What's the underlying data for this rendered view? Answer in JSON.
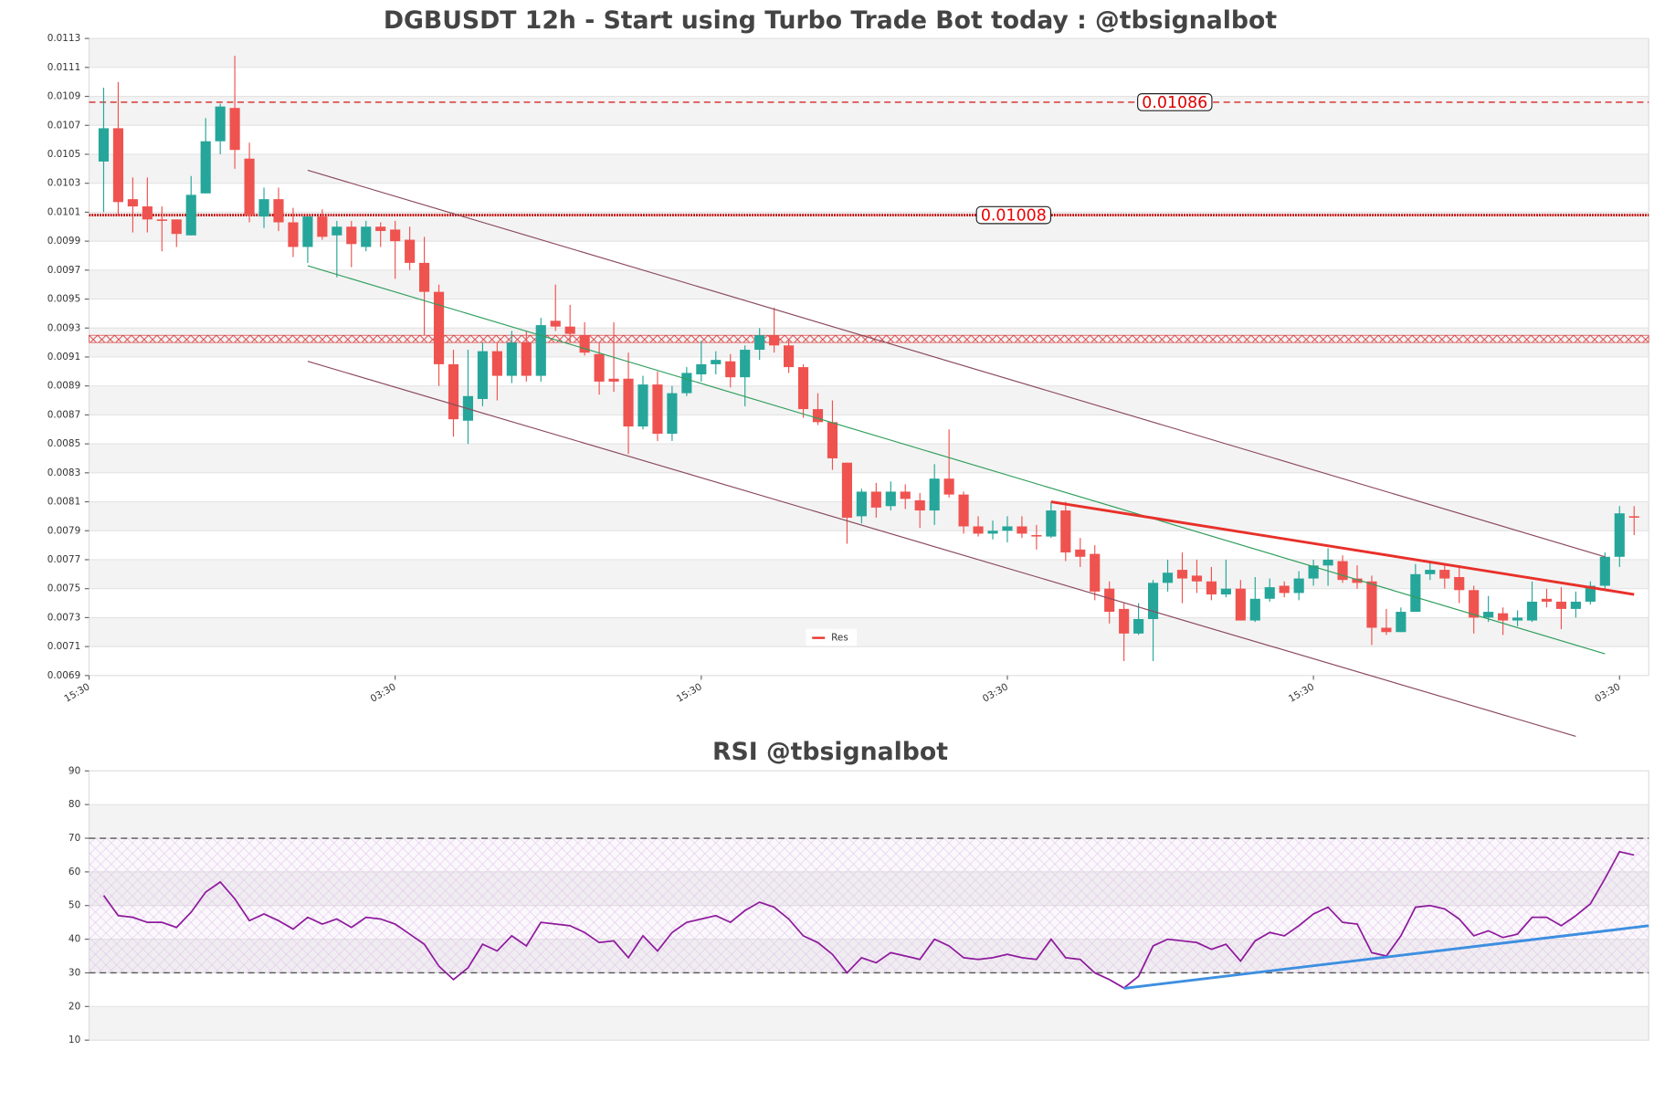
{
  "chart_data": [
    {
      "type": "candlestick",
      "title": "DGBUSDT 12h - Start using Turbo Trade Bot today : @tbsignalbot",
      "xlim": [
        -1,
        106
      ],
      "xticks": [
        {
          "value": -1,
          "label": "15:30"
        },
        {
          "value": 20,
          "label": "03:30"
        },
        {
          "value": 41,
          "label": "15:30"
        },
        {
          "value": 62,
          "label": "03:30"
        },
        {
          "value": 83,
          "label": "15:30"
        },
        {
          "value": 104,
          "label": "03:30"
        }
      ],
      "ylim": [
        0.0069,
        0.0113
      ],
      "yticks": [
        0.0069,
        0.0071,
        0.0073,
        0.0075,
        0.0077,
        0.0079,
        0.0081,
        0.0083,
        0.0085,
        0.0087,
        0.0089,
        0.0091,
        0.0093,
        0.0095,
        0.0097,
        0.0099,
        0.0101,
        0.0103,
        0.0105,
        0.0107,
        0.0109,
        0.0111,
        0.0113
      ],
      "grid": true,
      "up_color": "#26a69a",
      "down_color": "#ef5350",
      "open": [
        0.01045,
        0.01068,
        0.01019,
        0.01014,
        0.01005,
        0.01005,
        0.00994,
        0.01023,
        0.01059,
        0.01082,
        0.01047,
        0.01007,
        0.01019,
        0.01003,
        0.00986,
        0.01007,
        0.00994,
        0.01,
        0.00986,
        0.01,
        0.00998,
        0.00991,
        0.00975,
        0.00955,
        0.00905,
        0.00866,
        0.00881,
        0.00914,
        0.00897,
        0.0092,
        0.00897,
        0.00935,
        0.00931,
        0.00925,
        0.00912,
        0.00895,
        0.00895,
        0.00862,
        0.00891,
        0.00857,
        0.00885,
        0.00898,
        0.00905,
        0.00907,
        0.00896,
        0.00915,
        0.00925,
        0.00918,
        0.00903,
        0.00874,
        0.00865,
        0.00837,
        0.008,
        0.00817,
        0.00807,
        0.00817,
        0.00811,
        0.00804,
        0.00826,
        0.00815,
        0.00793,
        0.00788,
        0.0079,
        0.00793,
        0.00787,
        0.00786,
        0.00804,
        0.00777,
        0.00774,
        0.0075,
        0.00736,
        0.00719,
        0.00729,
        0.00754,
        0.00763,
        0.00759,
        0.00755,
        0.00746,
        0.0075,
        0.00728,
        0.00743,
        0.00752,
        0.00747,
        0.00757,
        0.00766,
        0.00769,
        0.00757,
        0.00755,
        0.00723,
        0.0072,
        0.00734,
        0.0076,
        0.00763,
        0.00758,
        0.00749,
        0.0073,
        0.00733,
        0.00728,
        0.00728,
        0.00743,
        0.00741,
        0.00736,
        0.00741,
        0.00752,
        0.00772,
        0.008
      ],
      "high": [
        0.01096,
        0.011,
        0.01034,
        0.01034,
        0.01014,
        0.01005,
        0.01035,
        0.01075,
        0.01085,
        0.01118,
        0.01058,
        0.01027,
        0.01027,
        0.01013,
        0.01007,
        0.01012,
        0.01004,
        0.01004,
        0.01004,
        0.01003,
        0.01004,
        0.01,
        0.00993,
        0.0096,
        0.00915,
        0.00915,
        0.0092,
        0.0092,
        0.00928,
        0.00928,
        0.00937,
        0.0096,
        0.00946,
        0.00934,
        0.0092,
        0.00934,
        0.00913,
        0.00897,
        0.009,
        0.0089,
        0.00903,
        0.00921,
        0.00914,
        0.00912,
        0.00918,
        0.0093,
        0.00944,
        0.00922,
        0.00905,
        0.00885,
        0.0088,
        0.00837,
        0.00819,
        0.00823,
        0.00824,
        0.00822,
        0.00816,
        0.00836,
        0.0086,
        0.00817,
        0.008,
        0.00797,
        0.008,
        0.008,
        0.00794,
        0.0081,
        0.0081,
        0.00785,
        0.0078,
        0.00755,
        0.0074,
        0.0074,
        0.00756,
        0.0077,
        0.00775,
        0.0077,
        0.00765,
        0.0077,
        0.00756,
        0.00758,
        0.00757,
        0.00755,
        0.00762,
        0.0077,
        0.00778,
        0.00773,
        0.00766,
        0.00759,
        0.00736,
        0.00737,
        0.00767,
        0.00768,
        0.00767,
        0.00766,
        0.00752,
        0.00745,
        0.00737,
        0.00735,
        0.00755,
        0.0075,
        0.00751,
        0.00748,
        0.00755,
        0.00775,
        0.00807,
        0.00807
      ],
      "low": [
        0.0101,
        0.01008,
        0.00996,
        0.00996,
        0.00983,
        0.00986,
        0.00994,
        0.01023,
        0.0105,
        0.0104,
        0.01003,
        0.00999,
        0.00997,
        0.00979,
        0.00975,
        0.00991,
        0.00965,
        0.00972,
        0.00983,
        0.00986,
        0.00964,
        0.0097,
        0.00925,
        0.0089,
        0.00855,
        0.0085,
        0.00876,
        0.0088,
        0.00892,
        0.00893,
        0.00893,
        0.00928,
        0.0092,
        0.00911,
        0.00884,
        0.00886,
        0.00843,
        0.0086,
        0.00852,
        0.00852,
        0.00883,
        0.00893,
        0.00898,
        0.00889,
        0.00876,
        0.00908,
        0.00913,
        0.00899,
        0.00868,
        0.00863,
        0.00832,
        0.00781,
        0.00795,
        0.00799,
        0.00804,
        0.00805,
        0.00792,
        0.00794,
        0.00813,
        0.00788,
        0.00786,
        0.00784,
        0.00782,
        0.00785,
        0.00777,
        0.00785,
        0.00769,
        0.00765,
        0.00742,
        0.00726,
        0.007,
        0.00718,
        0.007,
        0.00748,
        0.0074,
        0.00747,
        0.00742,
        0.00744,
        0.00728,
        0.00727,
        0.00741,
        0.00744,
        0.00742,
        0.00752,
        0.00752,
        0.00754,
        0.0075,
        0.00711,
        0.00718,
        0.0072,
        0.00734,
        0.00756,
        0.0075,
        0.0074,
        0.00719,
        0.00727,
        0.00718,
        0.00724,
        0.00727,
        0.00737,
        0.00722,
        0.0073,
        0.00739,
        0.00749,
        0.00765,
        0.00787
      ],
      "close": [
        0.01068,
        0.01017,
        0.01014,
        0.01005,
        0.01004,
        0.00995,
        0.01022,
        0.01059,
        0.01083,
        0.01053,
        0.01008,
        0.01019,
        0.01003,
        0.00986,
        0.01007,
        0.00993,
        0.01,
        0.00988,
        0.01,
        0.00997,
        0.0099,
        0.00975,
        0.00955,
        0.00905,
        0.00867,
        0.00883,
        0.00914,
        0.00897,
        0.0092,
        0.00897,
        0.00932,
        0.00931,
        0.00926,
        0.00913,
        0.00893,
        0.00893,
        0.00862,
        0.00891,
        0.00857,
        0.00885,
        0.00899,
        0.00905,
        0.00908,
        0.00896,
        0.00915,
        0.00925,
        0.00918,
        0.00903,
        0.00874,
        0.00865,
        0.0084,
        0.00799,
        0.00817,
        0.00806,
        0.00817,
        0.00812,
        0.00804,
        0.00826,
        0.00815,
        0.00793,
        0.00788,
        0.0079,
        0.00793,
        0.00788,
        0.00786,
        0.00804,
        0.00775,
        0.00772,
        0.00748,
        0.00734,
        0.00719,
        0.00729,
        0.00754,
        0.00761,
        0.00757,
        0.00755,
        0.00746,
        0.0075,
        0.00728,
        0.00743,
        0.00751,
        0.00747,
        0.00757,
        0.00766,
        0.0077,
        0.00756,
        0.00754,
        0.00723,
        0.0072,
        0.00734,
        0.0076,
        0.00763,
        0.00757,
        0.00749,
        0.0073,
        0.00734,
        0.00728,
        0.0073,
        0.00741,
        0.00741,
        0.00736,
        0.00741,
        0.00752,
        0.00772,
        0.00802,
        0.00799
      ],
      "levels": [
        {
          "value": 0.01086,
          "label": "0.01086",
          "style": "dashed",
          "color": "#d62728"
        },
        {
          "value": 0.01008,
          "label": "0.01008",
          "style": "dotted",
          "color": "#c00000"
        }
      ],
      "zones": [
        {
          "low": 0.0092,
          "high": 0.00925,
          "color": "#d62728"
        }
      ],
      "trendlines": [
        {
          "x": [
            14,
            103
          ],
          "values": [
            0.01039,
            0.00772
          ],
          "color": "#8b4a5c"
        },
        {
          "x": [
            14,
            101
          ],
          "values": [
            0.00907,
            0.00648
          ],
          "color": "#8b4a5c"
        },
        {
          "x": [
            14,
            103
          ],
          "values": [
            0.00973,
            0.00705
          ],
          "color": "#2e9e5b"
        },
        {
          "name": "Res",
          "x": [
            65,
            105
          ],
          "values": [
            0.0081,
            0.00746
          ],
          "color": "#e8302a"
        }
      ]
    },
    {
      "type": "line",
      "title": "RSI @tbsignalbot",
      "xlim": [
        -1,
        106
      ],
      "ylim": [
        10,
        90
      ],
      "yticks": [
        10,
        20,
        30,
        40,
        50,
        60,
        70,
        80,
        90
      ],
      "color": "#8e1b9c",
      "values": [
        53,
        47,
        46.5,
        45,
        45,
        43.5,
        48,
        54,
        57,
        52,
        45.5,
        47.5,
        45.5,
        43,
        46.5,
        44.5,
        46,
        43.5,
        46.5,
        46,
        44.5,
        41.5,
        38.5,
        32,
        28,
        31.5,
        38.5,
        36.5,
        41,
        38,
        45,
        44.5,
        44,
        42,
        39,
        39.5,
        34.5,
        41,
        36.5,
        42,
        45,
        46,
        47,
        45,
        48.5,
        51,
        49.5,
        46,
        41,
        39,
        35.5,
        30,
        34.5,
        33,
        36,
        35,
        34,
        40,
        38,
        34.5,
        34,
        34.5,
        35.5,
        34.5,
        34,
        40,
        34.5,
        34,
        30,
        28,
        25.5,
        29,
        38,
        40,
        39.5,
        39,
        37,
        38.5,
        33.5,
        39.5,
        42,
        41,
        44,
        47.5,
        49.5,
        45,
        44.5,
        36,
        35,
        41,
        49.5,
        50,
        49,
        46,
        41,
        42.5,
        40.5,
        41.5,
        46.5,
        46.5,
        44,
        47,
        50.5,
        58,
        66,
        65
      ],
      "levels": [
        {
          "value": 70,
          "style": "dashed",
          "color": "#555"
        },
        {
          "value": 30,
          "style": "dashed",
          "color": "#555"
        }
      ],
      "zones": [
        {
          "low": 30,
          "high": 70,
          "color": "#c9a0dc"
        }
      ],
      "trendlines": [
        {
          "x": [
            70,
            106
          ],
          "values": [
            25.4,
            44
          ],
          "color": "#3d8fe0"
        }
      ]
    }
  ]
}
